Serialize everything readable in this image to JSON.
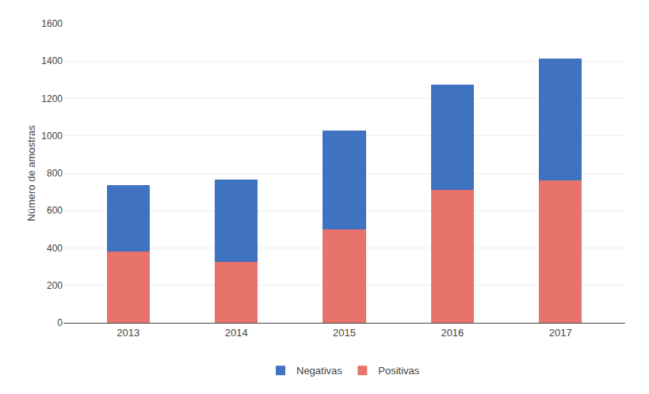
{
  "chart_data": {
    "type": "bar",
    "stacked": true,
    "categories": [
      "2013",
      "2014",
      "2015",
      "2016",
      "2017"
    ],
    "series": [
      {
        "name": "Positivas",
        "color": "#E8736A",
        "values": [
          380,
          325,
          500,
          710,
          760
        ]
      },
      {
        "name": "Negativas",
        "color": "#3F72C1",
        "values": [
          355,
          440,
          530,
          565,
          655
        ]
      }
    ],
    "ylabel": "Número de amostras",
    "ylim": [
      0,
      1600
    ],
    "yticks": [
      0,
      200,
      400,
      600,
      800,
      1000,
      1200,
      1400,
      1600
    ],
    "grid": true,
    "legend": "bottom"
  }
}
